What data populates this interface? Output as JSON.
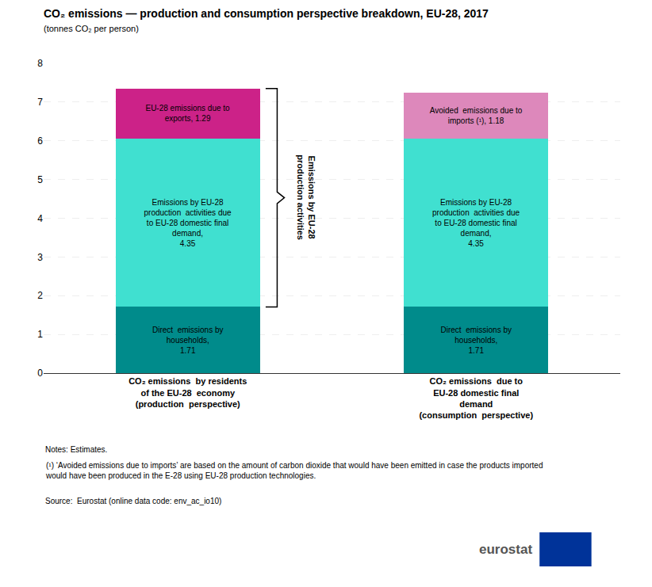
{
  "chart_data": {
    "type": "bar",
    "stacked": true,
    "title": "CO₂ emissions — production and consumption perspective breakdown, EU-28, 2017",
    "subtitle": "(tonnes CO₂ per person)",
    "categories": [
      "CO₂ emissions  by residents\nof the EU-28  economy\n(production  perspective)",
      "CO₂ emissions  due to\nEU-28 domestic final\ndemand\n(consumption  perspective)"
    ],
    "series": [
      {
        "color": "#008B8B",
        "values": [
          1.71,
          1.71
        ],
        "value_labels": [
          "Direct  emissions by\nhouseholds,\n1.71",
          "Direct  emissions by\nhouseholds,\n1.71"
        ]
      },
      {
        "color": "#40E0D0",
        "values": [
          4.35,
          4.35
        ],
        "value_labels": [
          "Emissions by EU-28\nproduction  activities due\nto EU-28 domestic final\ndemand,\n4.35",
          "Emissions by EU-28\nproduction  activities due\nto EU-28 domestic final\ndemand,\n4.35"
        ]
      },
      {
        "colors": [
          "#CC2288",
          "#DD88BB"
        ],
        "values": [
          1.29,
          1.18
        ],
        "value_labels": [
          "EU-28 emissions due to\nexports, 1.29",
          "Avoided  emissions due to\nimports (¹), 1.18"
        ]
      }
    ],
    "data_labels": true,
    "bracket_label": "Emissions by EU-28\nproduction activities",
    "notes": [
      "Notes: Estimates.",
      "(¹) ‘Avoided emissions due to imports’ are based on the amount of carbon dioxide that would have been emitted in case the products imported\nwould have been produced in the E-28 using EU-28 production technologies.",
      "Source:  Eurostat (online data code: env_ac_io10)"
    ],
    "logo": "eurostat",
    "ylim": [
      0,
      8
    ],
    "yticks": [
      0,
      1,
      2,
      3,
      4,
      5,
      6,
      7,
      8
    ],
    "grid": true
  }
}
